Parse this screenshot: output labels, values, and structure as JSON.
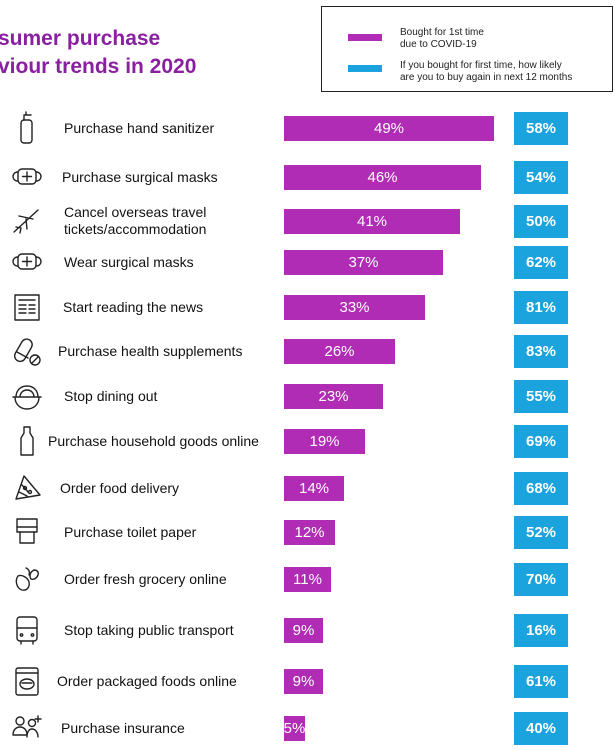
{
  "title_lines": [
    "sumer purchase",
    "viour trends in 2020"
  ],
  "legend": {
    "first_time": [
      "Bought  for 1st time",
      "due to COVID-19"
    ],
    "repeat": [
      "If you bought for first time, how likely",
      "are you to buy again in next 12 months"
    ]
  },
  "colors": {
    "first_time": "#b02cb4",
    "repeat": "#1aa3dd",
    "title": "#8a1fa0"
  },
  "chart_data": {
    "type": "bar",
    "orientation": "horizontal",
    "categories": [
      "Purchase hand sanitizer",
      "Purchase surgical masks",
      "Cancel overseas travel tickets/accommodation",
      "Wear  surgical masks",
      "Start reading the news",
      "Purchase health supplements",
      "Stop dining out",
      "Purchase household goods online",
      "Order food delivery",
      "Purchase toilet paper",
      "Order fresh grocery online",
      "Stop taking public transport",
      "Order packaged foods online",
      "Purchase insurance"
    ],
    "label_lines": [
      [
        "Purchase hand sanitizer"
      ],
      [
        "Purchase surgical masks"
      ],
      [
        "Cancel overseas travel",
        "tickets/accommodation"
      ],
      [
        "Wear  surgical masks"
      ],
      [
        "Start reading the news"
      ],
      [
        "Purchase health supplements"
      ],
      [
        "Stop dining out"
      ],
      [
        "Purchase household goods online"
      ],
      [
        "Order food delivery"
      ],
      [
        "Purchase toilet paper"
      ],
      [
        "Order fresh grocery online"
      ],
      [
        "Stop taking public transport"
      ],
      [
        "Order packaged foods online"
      ],
      [
        "Purchase insurance"
      ]
    ],
    "icons": [
      "sanitizer-icon",
      "mask-icon",
      "airplane-icon",
      "mask-icon",
      "newspaper-icon",
      "pill-icon",
      "dining-icon",
      "bottle-icon",
      "pizza-icon",
      "toilet-paper-icon",
      "grocery-icon",
      "bus-icon",
      "packaged-food-icon",
      "insurance-icon"
    ],
    "series": [
      {
        "name": "Bought  for 1st time due to COVID-19",
        "values": [
          49,
          46,
          41,
          37,
          33,
          26,
          23,
          19,
          14,
          12,
          11,
          9,
          9,
          5
        ],
        "labels": [
          "49%",
          "46%",
          "41%",
          "37%",
          "33%",
          "26%",
          "23%",
          "19%",
          "14%",
          "12%",
          "11%",
          "9%",
          "9%",
          "5%"
        ]
      },
      {
        "name": "If you bought for first time, how likely are you to buy again in next 12 months",
        "values": [
          58,
          54,
          50,
          62,
          81,
          83,
          55,
          69,
          68,
          52,
          70,
          16,
          61,
          40
        ],
        "labels": [
          "58%",
          "54%",
          "50%",
          "62%",
          "81%",
          "83%",
          "55%",
          "69%",
          "68%",
          "52%",
          "70%",
          "16%",
          "61%",
          "40%"
        ]
      }
    ]
  }
}
